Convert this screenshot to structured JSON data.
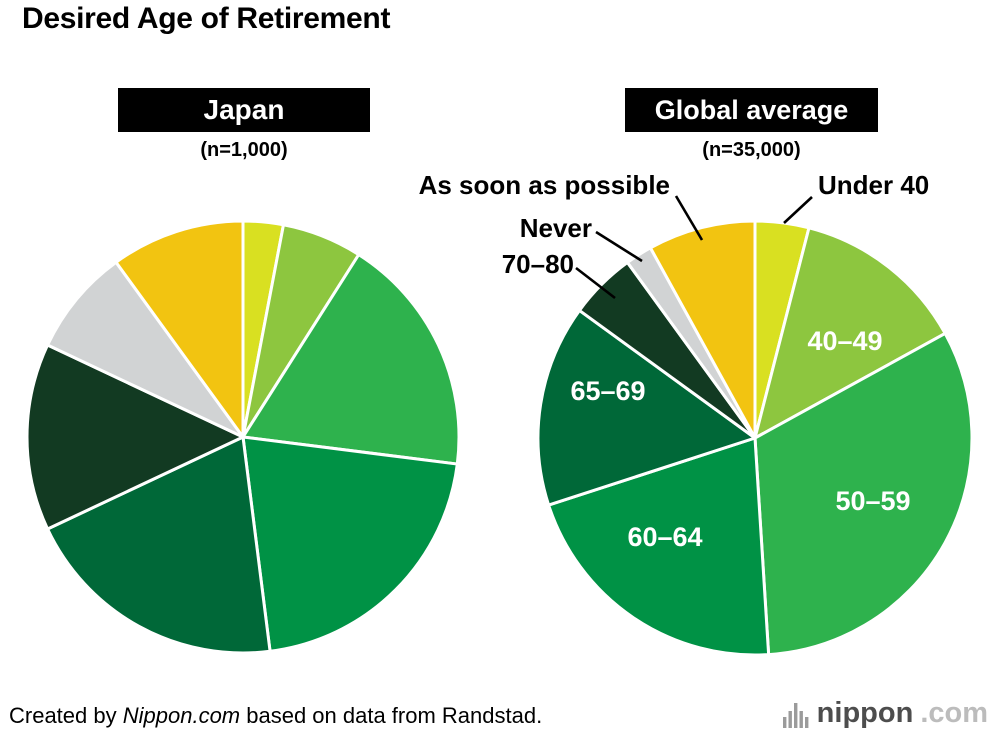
{
  "title": "Desired Age of Retirement",
  "chart_data": [
    {
      "type": "pie",
      "title": "Japan",
      "n": "(n=1,000)",
      "unit": "percent (estimated from slice angles)",
      "start_angle": "top",
      "direction": "clockwise",
      "slice_border_color": "#ffffff",
      "slices": [
        {
          "label": "Under 40",
          "value": 3,
          "color": "#d9e021"
        },
        {
          "label": "40–49",
          "value": 6,
          "color": "#8dc63f"
        },
        {
          "label": "50–59",
          "value": 18,
          "color": "#2eb24d"
        },
        {
          "label": "60–64",
          "value": 21,
          "color": "#009245"
        },
        {
          "label": "65–69",
          "value": 20,
          "color": "#006838"
        },
        {
          "label": "70–80",
          "value": 14,
          "color": "#123a22"
        },
        {
          "label": "Never",
          "value": 8,
          "color": "#d1d3d4"
        },
        {
          "label": "As soon as possible",
          "value": 10,
          "color": "#f2c411"
        }
      ]
    },
    {
      "type": "pie",
      "title": "Global average",
      "n": "(n=35,000)",
      "unit": "percent (estimated from slice angles)",
      "start_angle": "top",
      "direction": "clockwise",
      "slice_border_color": "#ffffff",
      "slices": [
        {
          "label": "Under 40",
          "value": 4,
          "color": "#d9e021"
        },
        {
          "label": "40–49",
          "value": 13,
          "color": "#8dc63f"
        },
        {
          "label": "50–59",
          "value": 32,
          "color": "#2eb24d"
        },
        {
          "label": "60–64",
          "value": 21,
          "color": "#009245"
        },
        {
          "label": "65–69",
          "value": 15,
          "color": "#006838"
        },
        {
          "label": "70–80",
          "value": 5,
          "color": "#123a22"
        },
        {
          "label": "Never",
          "value": 2,
          "color": "#d1d3d4"
        },
        {
          "label": "As soon as possible",
          "value": 8,
          "color": "#f2c411"
        }
      ]
    }
  ],
  "footer": {
    "prefix": "Created by ",
    "source": "Nippon.com",
    "suffix": " based on data from Randstad.",
    "logo_name": "nippon",
    "logo_tld": ".com"
  }
}
